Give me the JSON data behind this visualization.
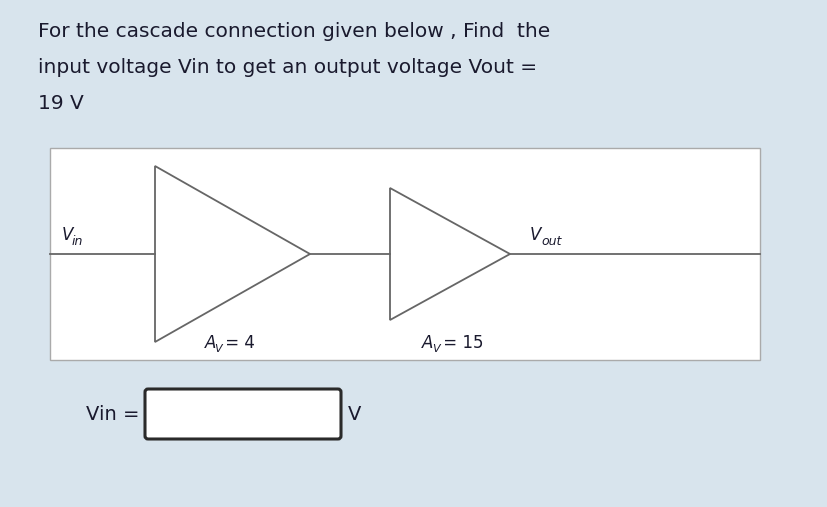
{
  "bg_color": "#d8e4ed",
  "white_bg": "#ffffff",
  "title_line1": "For the cascade connection given below , Find  the",
  "title_line2": "input voltage Vin to get an output voltage Vout =",
  "title_line3": "19 V",
  "title_fontsize": 14.5,
  "amp1_label_main": "A",
  "amp1_label_sub": "V",
  "amp1_label_val": " = 4",
  "amp2_label_main": "A",
  "amp2_label_sub": "V",
  "amp2_label_val": " = 15",
  "vin_main": "V",
  "vin_sub": "in",
  "vout_main": "V",
  "vout_sub": "out",
  "vin_eq_label": "Vin =",
  "v_unit": "V",
  "line_color": "#666666",
  "text_color": "#1a1a2e",
  "box_edge_color": "#aaaaaa"
}
